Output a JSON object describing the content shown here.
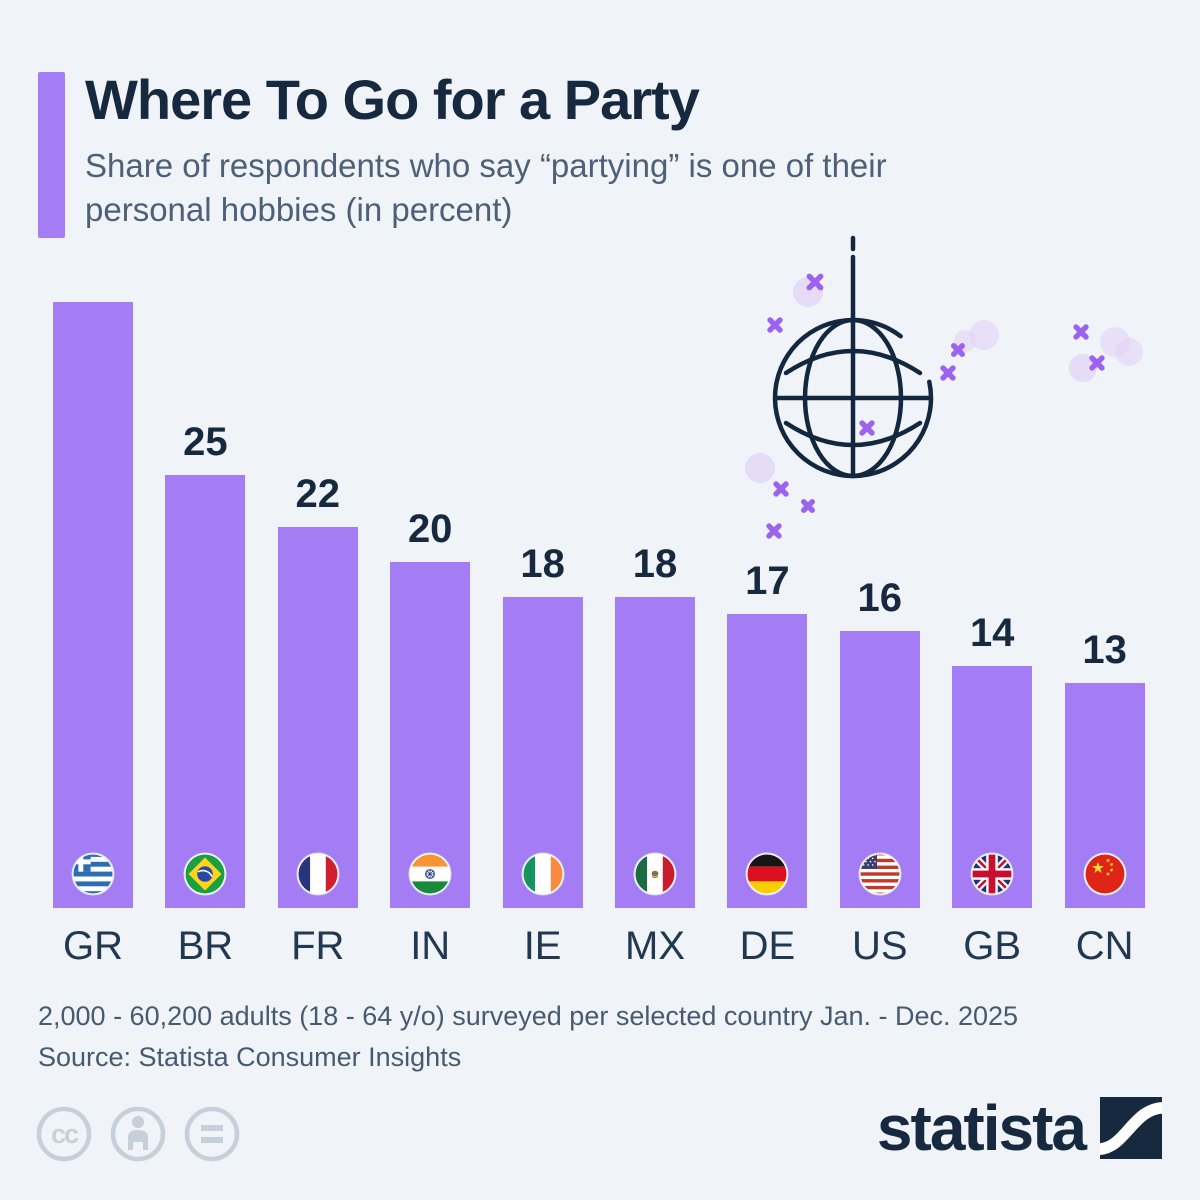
{
  "header": {
    "title": "Where To Go for a Party",
    "subtitle": "Share of respondents who say “partying” is one of their personal hobbies (in percent)"
  },
  "chart_data": {
    "type": "bar",
    "title": "Where To Go for a Party",
    "subtitle": "Share of respondents who say “partying” is one of their personal hobbies (in percent)",
    "unit": "percent",
    "categories": [
      "GR",
      "BR",
      "FR",
      "IN",
      "IE",
      "MX",
      "DE",
      "US",
      "GB",
      "CN"
    ],
    "values": [
      35,
      25,
      22,
      20,
      18,
      18,
      17,
      16,
      14,
      13
    ],
    "flag_icons": [
      "greece-flag-icon",
      "brazil-flag-icon",
      "france-flag-icon",
      "india-flag-icon",
      "ireland-flag-icon",
      "mexico-flag-icon",
      "germany-flag-icon",
      "usa-flag-icon",
      "uk-flag-icon",
      "china-flag-icon"
    ],
    "bar_color": "#a47cf4",
    "value_label_color": "#17293f",
    "first_value_label_inside": true,
    "xlabel": "",
    "ylabel": "",
    "ylim": [
      0,
      35
    ],
    "grid": false,
    "legend": "none"
  },
  "footer": {
    "note": "2,000 - 60,200 adults (18 - 64 y/o) surveyed per selected country Jan. - Dec. 2025",
    "source": "Source: Statista Consumer Insights",
    "brand_wordmark": "statista",
    "license_icons": [
      "cc-icon",
      "attribution-person-icon",
      "no-derivatives-equals-icon"
    ]
  },
  "colors": {
    "background": "#f0f4f9",
    "accent_purple": "#a47cf4",
    "navy": "#17293f",
    "subtitle_slate": "#4d6078",
    "sparkle_purple": "#9c63ef",
    "bokeh_purple": "#e3d2f6",
    "license_gray": "#c7d0da"
  }
}
